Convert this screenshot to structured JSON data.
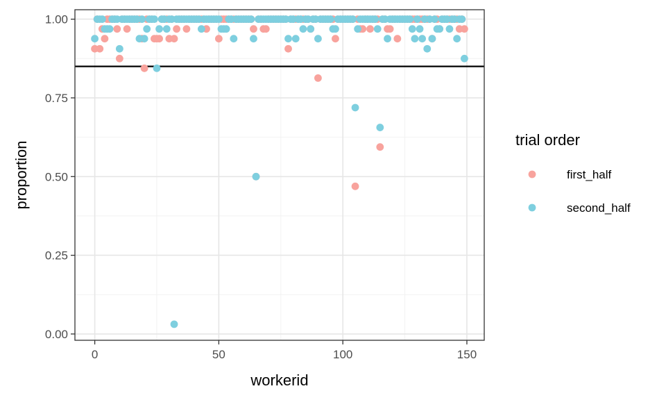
{
  "chart_data": {
    "type": "scatter",
    "xlabel": "workerid",
    "ylabel": "proportion",
    "xlim": [
      -8,
      157
    ],
    "ylim": [
      -0.02,
      1.03
    ],
    "x_ticks": [
      0,
      50,
      100,
      150
    ],
    "x_tick_labels": [
      "0",
      "50",
      "100",
      "150"
    ],
    "y_ticks": [
      0,
      0.25,
      0.5,
      0.75,
      1.0
    ],
    "y_tick_labels": [
      "0.00",
      "0.25",
      "0.50",
      "0.75",
      "1.00"
    ],
    "grid": true,
    "reference_line": {
      "orientation": "horizontal",
      "y": 0.85,
      "color": "#000000"
    },
    "legend": {
      "title": "trial order",
      "position": "right",
      "entries": [
        {
          "label": "first_half",
          "color": "#F8A39D"
        },
        {
          "label": "second_half",
          "color": "#7ECFDF"
        }
      ]
    },
    "series": [
      {
        "name": "first_half",
        "color": "#F8A39D",
        "x": [
          0,
          1,
          2,
          3,
          4,
          5,
          6,
          7,
          8,
          9,
          10,
          11,
          12,
          13,
          14,
          15,
          16,
          17,
          18,
          19,
          20,
          21,
          22,
          23,
          24,
          25,
          26,
          27,
          28,
          29,
          30,
          31,
          32,
          33,
          34,
          35,
          36,
          37,
          38,
          39,
          40,
          41,
          42,
          43,
          44,
          45,
          46,
          47,
          48,
          49,
          50,
          51,
          52,
          53,
          54,
          55,
          56,
          57,
          58,
          59,
          60,
          61,
          62,
          63,
          64,
          65,
          66,
          67,
          68,
          69,
          70,
          71,
          72,
          73,
          74,
          75,
          76,
          77,
          78,
          79,
          80,
          81,
          82,
          83,
          84,
          85,
          86,
          87,
          88,
          89,
          90,
          91,
          92,
          93,
          94,
          95,
          96,
          97,
          98,
          99,
          100,
          101,
          102,
          103,
          104,
          105,
          106,
          107,
          108,
          109,
          110,
          111,
          112,
          113,
          114,
          115,
          116,
          117,
          118,
          119,
          120,
          121,
          122,
          123,
          124,
          125,
          126,
          127,
          128,
          129,
          130,
          131,
          132,
          133,
          134,
          135,
          136,
          137,
          138,
          139,
          140,
          141,
          142,
          143,
          144,
          145,
          146,
          147,
          148,
          149
        ],
        "y": [
          0.906,
          1.0,
          0.906,
          0.969,
          0.938,
          1.0,
          1.0,
          1.0,
          1.0,
          0.969,
          0.875,
          1.0,
          1.0,
          0.969,
          1.0,
          1.0,
          1.0,
          1.0,
          1.0,
          0.938,
          0.844,
          1.0,
          1.0,
          1.0,
          0.938,
          0.938,
          0.938,
          1.0,
          1.0,
          1.0,
          0.938,
          1.0,
          0.938,
          0.969,
          1.0,
          1.0,
          1.0,
          0.969,
          1.0,
          1.0,
          1.0,
          1.0,
          1.0,
          1.0,
          1.0,
          0.969,
          1.0,
          1.0,
          1.0,
          1.0,
          0.938,
          1.0,
          1.0,
          1.0,
          1.0,
          1.0,
          1.0,
          1.0,
          1.0,
          1.0,
          1.0,
          1.0,
          1.0,
          1.0,
          0.969,
          0.5,
          1.0,
          1.0,
          0.969,
          0.969,
          1.0,
          1.0,
          1.0,
          1.0,
          1.0,
          1.0,
          1.0,
          1.0,
          0.906,
          1.0,
          1.0,
          1.0,
          1.0,
          1.0,
          1.0,
          1.0,
          1.0,
          0.969,
          1.0,
          1.0,
          0.813,
          1.0,
          1.0,
          1.0,
          1.0,
          1.0,
          1.0,
          0.938,
          1.0,
          1.0,
          1.0,
          1.0,
          1.0,
          1.0,
          1.0,
          0.469,
          1.0,
          0.969,
          0.969,
          1.0,
          1.0,
          0.969,
          1.0,
          1.0,
          1.0,
          0.594,
          1.0,
          1.0,
          0.969,
          0.969,
          1.0,
          1.0,
          0.938,
          1.0,
          1.0,
          1.0,
          1.0,
          1.0,
          1.0,
          1.0,
          1.0,
          1.0,
          1.0,
          1.0,
          1.0,
          1.0,
          0.938,
          1.0,
          1.0,
          0.969,
          1.0,
          1.0,
          1.0,
          1.0,
          1.0,
          1.0,
          1.0,
          0.969,
          1.0,
          0.969
        ]
      },
      {
        "name": "second_half",
        "color": "#7ECFDF",
        "x": [
          0,
          1,
          2,
          3,
          4,
          5,
          6,
          7,
          8,
          9,
          10,
          11,
          12,
          13,
          14,
          15,
          16,
          17,
          18,
          19,
          20,
          21,
          22,
          23,
          24,
          25,
          26,
          27,
          28,
          29,
          30,
          31,
          32,
          33,
          34,
          35,
          36,
          37,
          38,
          39,
          40,
          41,
          42,
          43,
          44,
          45,
          46,
          47,
          48,
          49,
          50,
          51,
          52,
          53,
          54,
          55,
          56,
          57,
          58,
          59,
          60,
          61,
          62,
          63,
          64,
          65,
          66,
          67,
          68,
          69,
          70,
          71,
          72,
          73,
          74,
          75,
          76,
          77,
          78,
          79,
          80,
          81,
          82,
          83,
          84,
          85,
          86,
          87,
          88,
          89,
          90,
          91,
          92,
          93,
          94,
          95,
          96,
          97,
          98,
          99,
          100,
          101,
          102,
          103,
          104,
          105,
          106,
          107,
          108,
          109,
          110,
          111,
          112,
          113,
          114,
          115,
          116,
          117,
          118,
          119,
          120,
          121,
          122,
          123,
          124,
          125,
          126,
          127,
          128,
          129,
          130,
          131,
          132,
          133,
          134,
          135,
          136,
          137,
          138,
          139,
          140,
          141,
          142,
          143,
          144,
          145,
          146,
          147,
          148,
          149
        ],
        "y": [
          0.938,
          1.0,
          1.0,
          1.0,
          0.969,
          0.969,
          0.969,
          1.0,
          1.0,
          1.0,
          0.906,
          1.0,
          1.0,
          1.0,
          1.0,
          1.0,
          1.0,
          1.0,
          0.938,
          1.0,
          0.938,
          0.969,
          1.0,
          1.0,
          1.0,
          0.844,
          0.969,
          1.0,
          1.0,
          0.969,
          1.0,
          1.0,
          0.031,
          1.0,
          1.0,
          1.0,
          1.0,
          1.0,
          1.0,
          1.0,
          1.0,
          1.0,
          1.0,
          0.969,
          1.0,
          1.0,
          1.0,
          1.0,
          1.0,
          1.0,
          1.0,
          0.969,
          0.969,
          0.969,
          1.0,
          1.0,
          0.938,
          1.0,
          1.0,
          1.0,
          1.0,
          1.0,
          1.0,
          1.0,
          0.938,
          0.5,
          1.0,
          1.0,
          1.0,
          1.0,
          1.0,
          1.0,
          1.0,
          1.0,
          1.0,
          1.0,
          1.0,
          1.0,
          0.938,
          1.0,
          1.0,
          0.938,
          1.0,
          1.0,
          0.969,
          1.0,
          1.0,
          0.969,
          1.0,
          1.0,
          0.938,
          1.0,
          1.0,
          1.0,
          1.0,
          1.0,
          0.969,
          0.969,
          1.0,
          1.0,
          1.0,
          1.0,
          1.0,
          1.0,
          1.0,
          0.719,
          0.969,
          1.0,
          1.0,
          1.0,
          1.0,
          1.0,
          1.0,
          1.0,
          0.969,
          0.656,
          1.0,
          1.0,
          0.938,
          1.0,
          1.0,
          1.0,
          1.0,
          1.0,
          1.0,
          1.0,
          1.0,
          1.0,
          0.969,
          0.938,
          1.0,
          0.969,
          0.938,
          1.0,
          0.906,
          1.0,
          0.938,
          1.0,
          0.969,
          0.969,
          1.0,
          1.0,
          1.0,
          0.969,
          1.0,
          1.0,
          0.938,
          1.0,
          1.0,
          0.875
        ]
      }
    ]
  }
}
